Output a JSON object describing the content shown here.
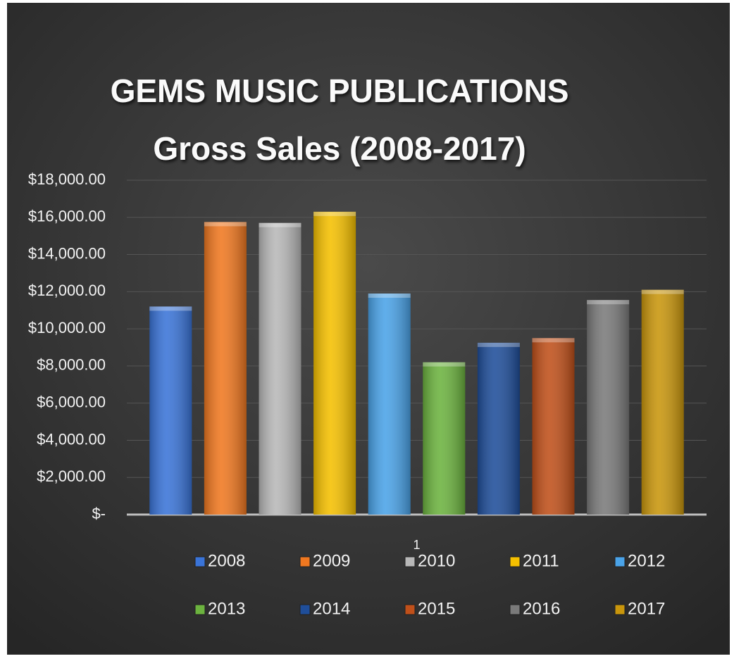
{
  "chart_data": {
    "type": "bar",
    "title": "GEMS MUSIC PUBLICATIONS",
    "subtitle": "Gross Sales (2008-2017)",
    "categories": [
      "1"
    ],
    "series": [
      {
        "name": "2008",
        "color": "#3a74d8",
        "values": [
          11200
        ]
      },
      {
        "name": "2009",
        "color": "#f07820",
        "values": [
          15750
        ]
      },
      {
        "name": "2010",
        "color": "#b8b8b8",
        "values": [
          15700
        ]
      },
      {
        "name": "2011",
        "color": "#f5c000",
        "values": [
          16300
        ]
      },
      {
        "name": "2012",
        "color": "#4aa3e8",
        "values": [
          11900
        ]
      },
      {
        "name": "2013",
        "color": "#6cb33f",
        "values": [
          8200
        ]
      },
      {
        "name": "2014",
        "color": "#1f4e9a",
        "values": [
          9250
        ]
      },
      {
        "name": "2015",
        "color": "#c0501a",
        "values": [
          9500
        ]
      },
      {
        "name": "2016",
        "color": "#7a7a7a",
        "values": [
          11550
        ]
      },
      {
        "name": "2017",
        "color": "#c9960c",
        "values": [
          12100
        ]
      }
    ],
    "ylim": [
      0,
      18000
    ],
    "yticks": [
      {
        "value": 0,
        "label": "$-"
      },
      {
        "value": 2000,
        "label": "$2,000.00"
      },
      {
        "value": 4000,
        "label": "$4,000.00"
      },
      {
        "value": 6000,
        "label": "$6,000.00"
      },
      {
        "value": 8000,
        "label": "$8,000.00"
      },
      {
        "value": 10000,
        "label": "$10,000.00"
      },
      {
        "value": 12000,
        "label": "$12,000.00"
      },
      {
        "value": 14000,
        "label": "$14,000.00"
      },
      {
        "value": 16000,
        "label": "$16,000.00"
      },
      {
        "value": 18000,
        "label": "$18,000.00"
      }
    ],
    "grid": true,
    "legend": "bottom"
  }
}
